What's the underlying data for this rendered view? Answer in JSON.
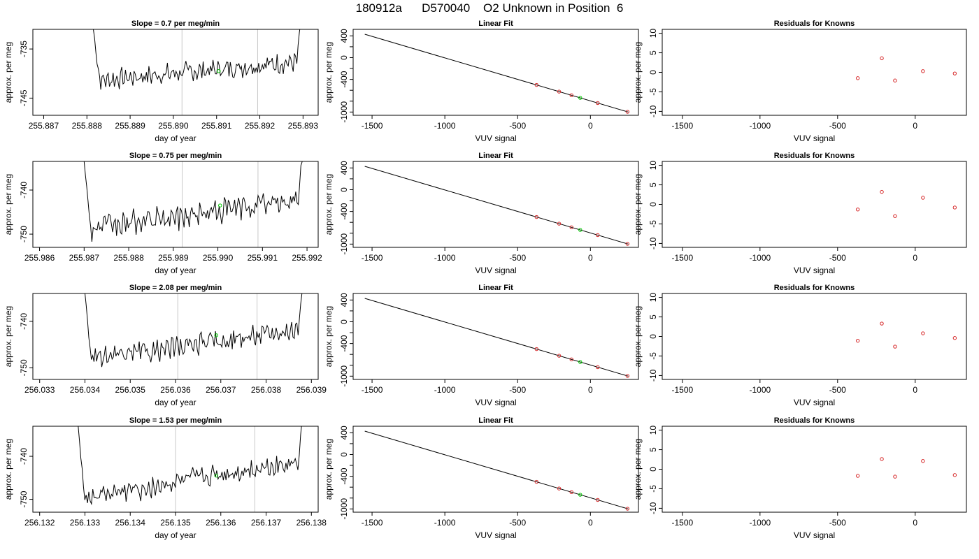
{
  "figure": {
    "title": "180912a      D570040    O2 Unknown in Position  6"
  },
  "colors": {
    "trace": "#000000",
    "vertical_lines": "#c8c8c8",
    "unknown_point": "#00cc00",
    "known_points": "#d62728",
    "frame": "#000000"
  },
  "chart_data": [
    {
      "panel": "timeseries-1",
      "type": "line",
      "title": "Slope =  0.7  per meg/min",
      "xlabel": "day of year",
      "ylabel": "approx. per meg",
      "xlim": [
        255.88675,
        255.89335
      ],
      "ylim": [
        -748.5,
        -731.0
      ],
      "xticks": [
        "255.887",
        "255.888",
        "255.889",
        "255.890",
        "255.891",
        "255.892",
        "255.893"
      ],
      "yticks": [
        "-735",
        "-745"
      ],
      "trace_start": 255.88815,
      "trace_end": 255.893,
      "trace_level": [
        -741.5,
        -737.5
      ],
      "trace_noise": 1.6,
      "vertical_lines": [
        255.8902,
        255.89195
      ],
      "unknown_point": [
        255.89105,
        -739.5
      ]
    },
    {
      "panel": "linearfit-1",
      "type": "scatter",
      "title": "Linear Fit",
      "xlabel": "VUV signal",
      "ylabel": "approx. per meg",
      "xlim": [
        -1630,
        330
      ],
      "ylim": [
        -1060,
        520
      ],
      "xticks": [
        "-1500",
        "-1000",
        "-500",
        "0"
      ],
      "yticks": [
        "400",
        "0",
        "-400",
        "-1000"
      ],
      "fit_line": [
        [
          -1550,
          430
        ],
        [
          260,
          -1000
        ]
      ],
      "known_x": [
        -370,
        -215,
        -130,
        50,
        255
      ],
      "unknown_x": [
        -70
      ]
    },
    {
      "panel": "residuals-1",
      "type": "scatter",
      "title": "Residuals for Knowns",
      "xlabel": "VUV signal",
      "ylabel": "approx. per meg",
      "xlim": [
        -1630,
        330
      ],
      "ylim": [
        -11,
        11
      ],
      "xticks": [
        "-1500",
        "-1000",
        "-500",
        "0"
      ],
      "yticks": [
        "10",
        "5",
        "0",
        "-5",
        "-10"
      ],
      "x": [
        -370,
        -215,
        -130,
        50,
        255
      ],
      "y": [
        -1.5,
        3.6,
        -2.1,
        0.3,
        -0.3
      ]
    },
    {
      "panel": "timeseries-2",
      "type": "line",
      "title": "Slope =  0.75  per meg/min",
      "xlabel": "day of year",
      "ylabel": "approx. per meg",
      "xlim": [
        255.98585,
        255.99225
      ],
      "ylim": [
        -753.0,
        -733.5
      ],
      "xticks": [
        "255.986",
        "255.987",
        "255.988",
        "255.989",
        "255.990",
        "255.991",
        "255.992"
      ],
      "yticks": [
        "-740",
        "-750"
      ],
      "trace_start": 255.987,
      "trace_end": 255.99195,
      "trace_level": [
        -749.0,
        -742.0
      ],
      "trace_noise": 2.2,
      "vertical_lines": [
        255.9892,
        255.9909
      ],
      "unknown_point": [
        255.99005,
        -743.5
      ]
    },
    {
      "panel": "linearfit-2",
      "type": "scatter",
      "title": "Linear Fit",
      "xlabel": "VUV signal",
      "ylabel": "approx. per meg",
      "xlim": [
        -1630,
        330
      ],
      "ylim": [
        -1060,
        520
      ],
      "xticks": [
        "-1500",
        "-1000",
        "-500",
        "0"
      ],
      "yticks": [
        "400",
        "0",
        "-400",
        "-1000"
      ],
      "fit_line": [
        [
          -1550,
          430
        ],
        [
          260,
          -1000
        ]
      ],
      "known_x": [
        -370,
        -215,
        -130,
        50,
        255
      ],
      "unknown_x": [
        -70
      ]
    },
    {
      "panel": "residuals-2",
      "type": "scatter",
      "title": "Residuals for Knowns",
      "xlabel": "VUV signal",
      "ylabel": "approx. per meg",
      "xlim": [
        -1630,
        330
      ],
      "ylim": [
        -11,
        11
      ],
      "x": [
        -370,
        -215,
        -130,
        50,
        255
      ],
      "y": [
        -1.3,
        3.2,
        -3.0,
        1.7,
        -0.8
      ],
      "xticks": [
        "-1500",
        "-1000",
        "-500",
        "0"
      ],
      "yticks": [
        "10",
        "5",
        "0",
        "-5",
        "-10"
      ]
    },
    {
      "panel": "timeseries-3",
      "type": "line",
      "title": "Slope =  2.08  per meg/min",
      "xlabel": "day of year",
      "ylabel": "approx. per meg",
      "xlim": [
        256.03285,
        256.03915
      ],
      "ylim": [
        -752.5,
        -734.0
      ],
      "xticks": [
        "256.033",
        "256.034",
        "256.035",
        "256.036",
        "256.037",
        "256.038",
        "256.039"
      ],
      "yticks": [
        "-740",
        "-750"
      ],
      "trace_start": 256.034,
      "trace_end": 256.03885,
      "trace_level": [
        -748.5,
        -741.5
      ],
      "trace_noise": 1.8,
      "vertical_lines": [
        256.03605,
        256.0378
      ],
      "unknown_point": [
        256.0369,
        -743.0
      ]
    },
    {
      "panel": "linearfit-3",
      "type": "scatter",
      "title": "Linear Fit",
      "xlabel": "VUV signal",
      "ylabel": "approx. per meg",
      "xlim": [
        -1630,
        330
      ],
      "ylim": [
        -1060,
        520
      ],
      "xticks": [
        "-1500",
        "-1000",
        "-500",
        "0"
      ],
      "yticks": [
        "400",
        "0",
        "-400",
        "-1000"
      ],
      "fit_line": [
        [
          -1550,
          430
        ],
        [
          260,
          -1000
        ]
      ],
      "known_x": [
        -370,
        -215,
        -130,
        50,
        255
      ],
      "unknown_x": [
        -70
      ]
    },
    {
      "panel": "residuals-3",
      "type": "scatter",
      "title": "Residuals for Knowns",
      "xlabel": "VUV signal",
      "ylabel": "approx. per meg",
      "xlim": [
        -1630,
        330
      ],
      "ylim": [
        -11,
        11
      ],
      "x": [
        -370,
        -215,
        -130,
        50,
        255
      ],
      "y": [
        -1.1,
        3.3,
        -2.6,
        0.8,
        -0.4
      ],
      "xticks": [
        "-1500",
        "-1000",
        "-500",
        "0"
      ],
      "yticks": [
        "10",
        "5",
        "0",
        "-5",
        "-10"
      ]
    },
    {
      "panel": "timeseries-4",
      "type": "line",
      "title": "Slope =  1.53  per meg/min",
      "xlabel": "day of year",
      "ylabel": "approx. per meg",
      "xlim": [
        256.13185,
        256.13815
      ],
      "ylim": [
        -753.0,
        -733.0
      ],
      "xticks": [
        "256.132",
        "256.133",
        "256.134",
        "256.135",
        "256.136",
        "256.137",
        "256.138"
      ],
      "yticks": [
        "-740",
        "-750"
      ],
      "trace_start": 256.13285,
      "trace_end": 256.13785,
      "trace_level": [
        -750.0,
        -741.0
      ],
      "trace_noise": 2.0,
      "vertical_lines": [
        256.135,
        256.13675
      ],
      "unknown_point": [
        256.1359,
        -744.5
      ]
    },
    {
      "panel": "linearfit-4",
      "type": "scatter",
      "title": "Linear Fit",
      "xlabel": "VUV signal",
      "ylabel": "approx. per meg",
      "xlim": [
        -1630,
        330
      ],
      "ylim": [
        -1060,
        520
      ],
      "xticks": [
        "-1500",
        "-1000",
        "-500",
        "0"
      ],
      "yticks": [
        "400",
        "0",
        "-400",
        "-1000"
      ],
      "fit_line": [
        [
          -1550,
          430
        ],
        [
          260,
          -1000
        ]
      ],
      "known_x": [
        -370,
        -215,
        -130,
        50,
        255
      ],
      "unknown_x": [
        -70
      ]
    },
    {
      "panel": "residuals-4",
      "type": "scatter",
      "title": "Residuals for Knowns",
      "xlabel": "VUV signal",
      "ylabel": "approx. per meg",
      "xlim": [
        -1630,
        330
      ],
      "ylim": [
        -11,
        11
      ],
      "x": [
        -370,
        -215,
        -130,
        50,
        255
      ],
      "y": [
        -1.7,
        2.6,
        -1.9,
        2.1,
        -1.5
      ],
      "xticks": [
        "-1500",
        "-1000",
        "-500",
        "0"
      ],
      "yticks": [
        "10",
        "5",
        "0",
        "-5",
        "-10"
      ]
    }
  ]
}
